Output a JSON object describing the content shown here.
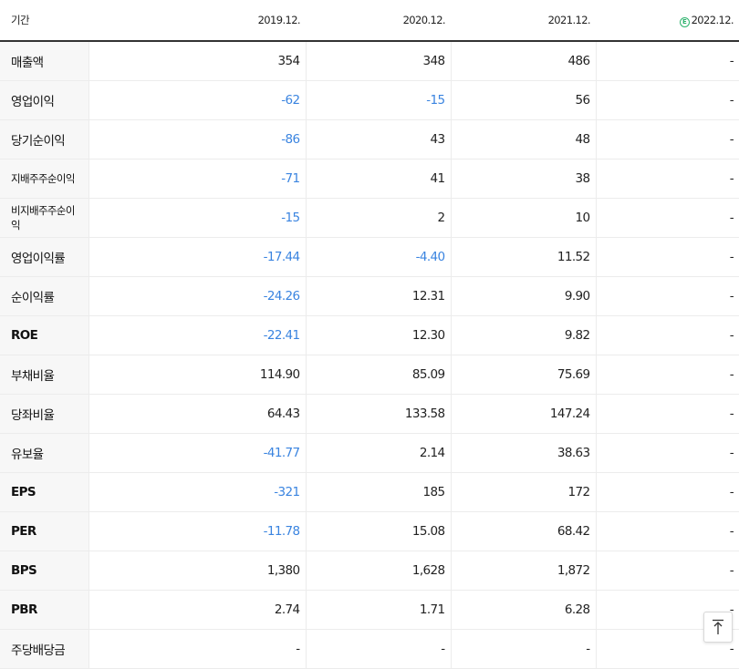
{
  "header": {
    "label": "기간",
    "periods": [
      "2019.12.",
      "2020.12.",
      "2021.12.",
      "2022.12."
    ],
    "estimate_icon": "estimate-e-icon",
    "estimate_icon_text": "E"
  },
  "colors": {
    "negative": "#3a84e0",
    "estimate": "#2db26d",
    "label_background": "#f7f7f7"
  },
  "rows": [
    {
      "label": "매출액",
      "values": [
        "354",
        "348",
        "486",
        "-"
      ]
    },
    {
      "label": "영업이익",
      "values": [
        "-62",
        "-15",
        "56",
        "-"
      ]
    },
    {
      "label": "당기순이익",
      "values": [
        "-86",
        "43",
        "48",
        "-"
      ]
    },
    {
      "label": "지배주주순이익",
      "values": [
        "-71",
        "41",
        "38",
        "-"
      ]
    },
    {
      "label": "비지배주주순이익",
      "values": [
        "-15",
        "2",
        "10",
        "-"
      ]
    },
    {
      "label": "영업이익률",
      "values": [
        "-17.44",
        "-4.40",
        "11.52",
        "-"
      ]
    },
    {
      "label": "순이익률",
      "values": [
        "-24.26",
        "12.31",
        "9.90",
        "-"
      ]
    },
    {
      "label": "ROE",
      "values": [
        "-22.41",
        "12.30",
        "9.82",
        "-"
      ]
    },
    {
      "label": "부채비율",
      "values": [
        "114.90",
        "85.09",
        "75.69",
        "-"
      ]
    },
    {
      "label": "당좌비율",
      "values": [
        "64.43",
        "133.58",
        "147.24",
        "-"
      ]
    },
    {
      "label": "유보율",
      "values": [
        "-41.77",
        "2.14",
        "38.63",
        "-"
      ]
    },
    {
      "label": "EPS",
      "values": [
        "-321",
        "185",
        "172",
        "-"
      ]
    },
    {
      "label": "PER",
      "values": [
        "-11.78",
        "15.08",
        "68.42",
        "-"
      ]
    },
    {
      "label": "BPS",
      "values": [
        "1,380",
        "1,628",
        "1,872",
        "-"
      ]
    },
    {
      "label": "PBR",
      "values": [
        "2.74",
        "1.71",
        "6.28",
        "-"
      ]
    },
    {
      "label": "주당배당금",
      "values": [
        "-",
        "-",
        "-",
        "-"
      ]
    }
  ],
  "scroll_top": {
    "icon": "arrow-up-to-top-icon"
  }
}
